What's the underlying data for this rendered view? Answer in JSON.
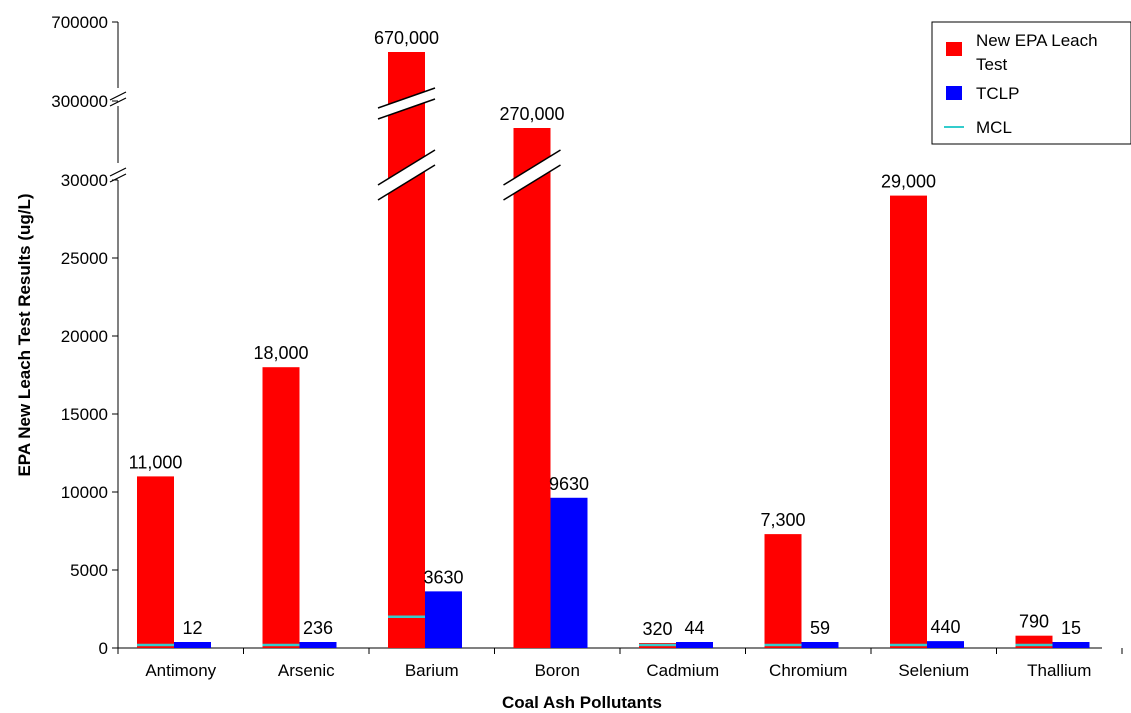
{
  "chart_data": {
    "type": "bar",
    "xlabel": "Coal Ash Pollutants",
    "ylabel": "EPA New Leach Test Results (ug/L)",
    "categories": [
      "Antimony",
      "Arsenic",
      "Barium",
      "Boron",
      "Cadmium",
      "Chromium",
      "Selenium",
      "Thallium"
    ],
    "series": [
      {
        "name": "New EPA Leach Test",
        "color": "#ff0000",
        "values": [
          11000,
          18000,
          670000,
          270000,
          320,
          7300,
          29000,
          790
        ],
        "labels": [
          "11,000",
          "18,000",
          "670,000",
          "270,000",
          "320",
          "7,300",
          "29,000",
          "790"
        ]
      },
      {
        "name": "TCLP",
        "color": "#0000ff",
        "values": [
          12,
          236,
          3630,
          9630,
          44,
          59,
          440,
          15
        ],
        "labels": [
          "12",
          "236",
          "3630",
          "9630",
          "44",
          "59",
          "440",
          "15"
        ]
      },
      {
        "name": "MCL",
        "color": "#33cccc",
        "values": [
          6,
          10,
          2000,
          null,
          5,
          100,
          50,
          2
        ]
      }
    ],
    "y_ticks": [
      "0",
      "5000",
      "10000",
      "15000",
      "20000",
      "25000",
      "30000",
      "300000",
      "700000"
    ],
    "axis_breaks": [
      "30000–300000",
      "300000–700000"
    ],
    "ylim": [
      0,
      700000
    ],
    "legend_position": "top-right",
    "grid": false
  }
}
